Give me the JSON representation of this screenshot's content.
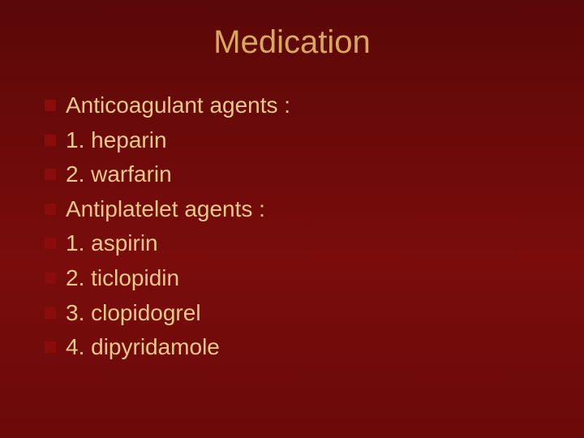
{
  "slide": {
    "title": "Medication",
    "title_color": "#d9a85c",
    "title_fontsize": 40,
    "background_gradient": [
      "#5a0808",
      "#6b0a0a",
      "#7a0c0c",
      "#6b0a0a"
    ],
    "bullet_color": "#8a0d0d",
    "text_color": "#e8c987",
    "item_fontsize": 28,
    "items": [
      "Anticoagulant agents :",
      "1. heparin",
      "2. warfarin",
      "Antiplatelet agents :",
      "1. aspirin",
      "2. ticlopidin",
      "3. clopidogrel",
      "4. dipyridamole"
    ]
  }
}
